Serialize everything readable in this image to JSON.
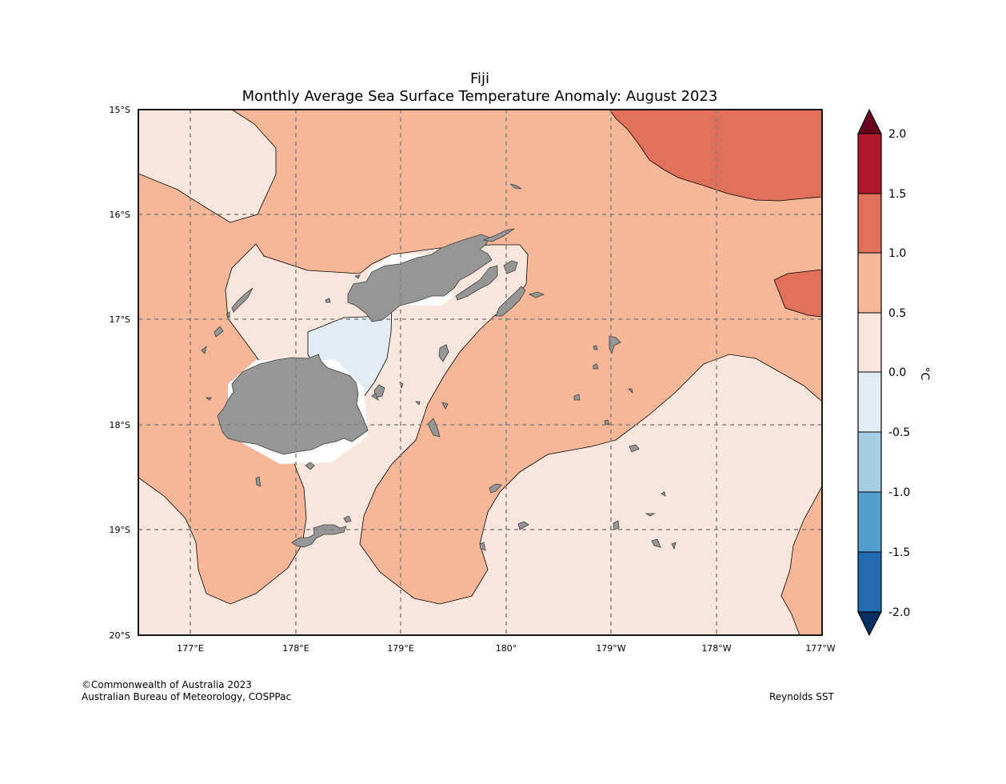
{
  "map": {
    "title": "Fiji",
    "subtitle": "Monthly Average Sea Surface Temperature Anomaly: August 2023",
    "lat_labels": [
      "15°S",
      "16°S",
      "17°S",
      "18°S",
      "19°S",
      "20°S"
    ],
    "lon_labels": [
      "177°E",
      "178°E",
      "179°E",
      "180°",
      "179°W",
      "178°W",
      "177°W"
    ],
    "land_color": "#969696",
    "grid_lines": "dashed"
  },
  "colorbar": {
    "unit": "°C",
    "ticks": [
      "2.0",
      "1.5",
      "1.0",
      "0.5",
      "0.0",
      "-0.5",
      "-1.0",
      "-1.5",
      "-2.0"
    ],
    "colors": {
      "above_2": "#67001f",
      "1.5_to_2.0": "#b2182b",
      "1.0_to_1.5": "#e07059",
      "0.5_to_1.0": "#f6b799",
      "0.0_to_0.5": "#f8e6dd",
      "-0.5_to_0.0": "#e1ecf3",
      "-1.0_to_-0.5": "#a6cfe4",
      "-1.5_to_-1.0": "#539ecd",
      "-2.0_to_-1.5": "#226bb0",
      "below_-2": "#053061"
    }
  },
  "footer": {
    "copyright": "©Commonwealth of Australia 2023",
    "agency": "Australian Bureau of Meteorology, COSPPac",
    "source": "Reynolds SST"
  }
}
